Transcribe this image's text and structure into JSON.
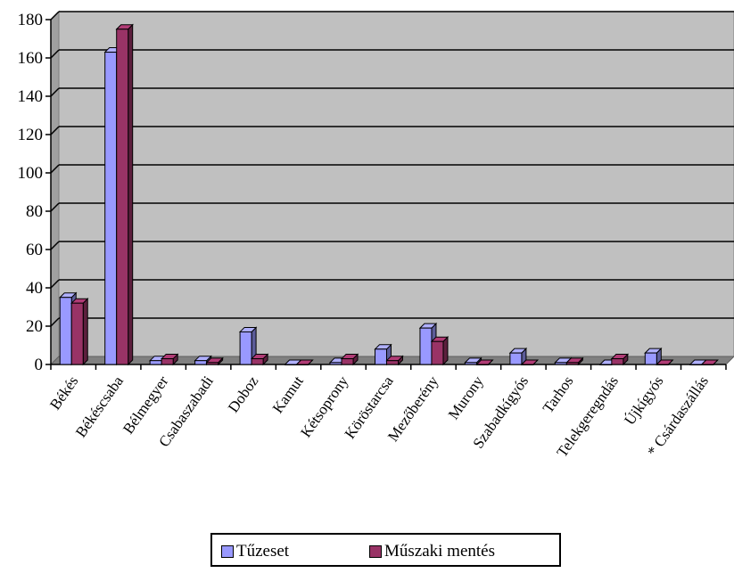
{
  "chart_data": {
    "type": "bar",
    "categories": [
      "Békés",
      "Békéscsaba",
      "Bélmegyer",
      "Csabaszabadi",
      "Doboz",
      "Kamut",
      "Kétsoprony",
      "Köröstarcsa",
      "Mezőberény",
      "Murony",
      "Szabadkígyós",
      "Tarhos",
      "Telekgeregndás",
      "Újkígyós",
      "* Csárdaszállás"
    ],
    "series": [
      {
        "name": "Tűzeset",
        "color": "#9999ff",
        "values": [
          35,
          163,
          2,
          2,
          17,
          0,
          1,
          8,
          19,
          1,
          6,
          1,
          0,
          6,
          0
        ]
      },
      {
        "name": "Műszaki mentés",
        "color": "#993366",
        "values": [
          32,
          175,
          3,
          1,
          3,
          0,
          3,
          2,
          12,
          0,
          0,
          1,
          3,
          0,
          0
        ]
      }
    ],
    "ylim": [
      0,
      180
    ],
    "yticks": [
      0,
      20,
      40,
      60,
      80,
      100,
      120,
      140,
      160,
      180
    ],
    "grid": true,
    "legend": "bottom",
    "plot_background": "#c0c0c0"
  }
}
